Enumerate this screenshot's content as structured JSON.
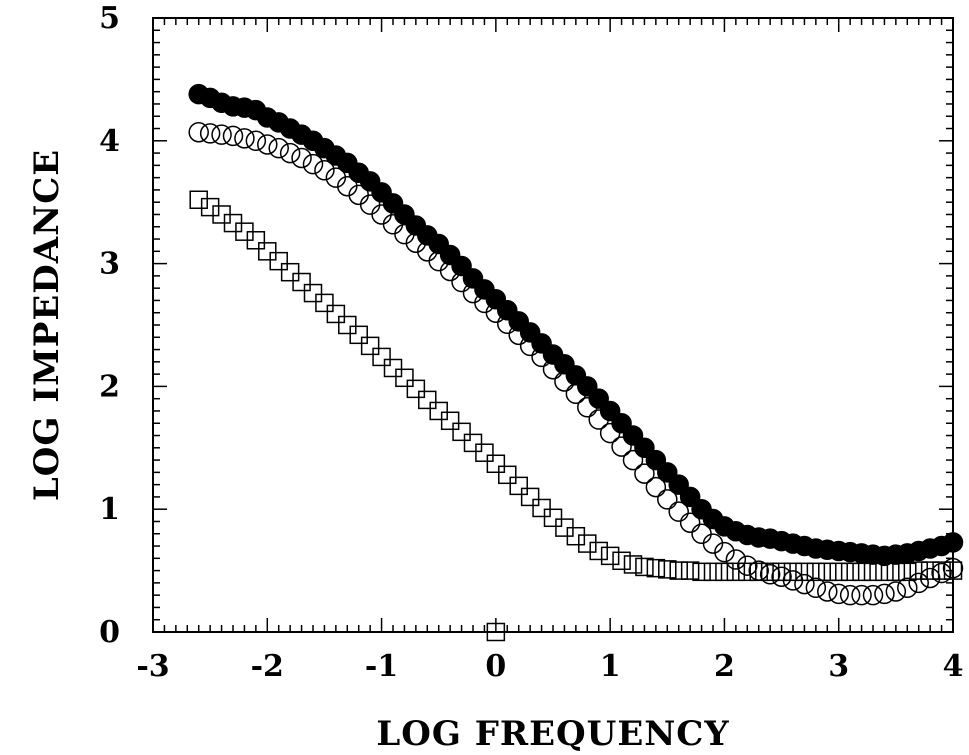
{
  "chart_data": {
    "type": "scatter",
    "xlabel": "LOG FREQUENCY",
    "ylabel": "LOG IMPEDANCE",
    "xlim": [
      -3,
      4
    ],
    "ylim": [
      0,
      5
    ],
    "x_ticks": [
      -3,
      -2,
      -1,
      0,
      1,
      2,
      3,
      4
    ],
    "y_ticks": [
      0,
      1,
      2,
      3,
      4,
      5
    ],
    "x_tick_labels": [
      "-3",
      "-2",
      "-1",
      "0",
      "1",
      "2",
      "3",
      "4"
    ],
    "y_tick_labels": [
      "0",
      "1",
      "2",
      "3",
      "4",
      "5"
    ],
    "grid": false,
    "series": [
      {
        "marker": "filled-circle",
        "x": [
          -2.6,
          -2.5,
          -2.4,
          -2.3,
          -2.2,
          -2.1,
          -2.0,
          -1.9,
          -1.8,
          -1.7,
          -1.6,
          -1.5,
          -1.4,
          -1.3,
          -1.2,
          -1.1,
          -1.0,
          -0.9,
          -0.8,
          -0.7,
          -0.6,
          -0.5,
          -0.4,
          -0.3,
          -0.2,
          -0.1,
          0.0,
          0.1,
          0.2,
          0.3,
          0.4,
          0.5,
          0.6,
          0.7,
          0.8,
          0.9,
          1.0,
          1.1,
          1.2,
          1.3,
          1.4,
          1.5,
          1.6,
          1.7,
          1.8,
          1.9,
          2.0,
          2.1,
          2.2,
          2.3,
          2.4,
          2.5,
          2.6,
          2.7,
          2.8,
          2.9,
          3.0,
          3.1,
          3.2,
          3.3,
          3.4,
          3.5,
          3.6,
          3.7,
          3.8,
          3.9,
          4.0
        ],
        "y": [
          4.38,
          4.35,
          4.31,
          4.28,
          4.27,
          4.25,
          4.19,
          4.15,
          4.1,
          4.05,
          4.0,
          3.94,
          3.88,
          3.82,
          3.74,
          3.67,
          3.58,
          3.49,
          3.4,
          3.31,
          3.23,
          3.16,
          3.07,
          2.98,
          2.88,
          2.79,
          2.71,
          2.62,
          2.53,
          2.44,
          2.35,
          2.26,
          2.18,
          2.09,
          2.0,
          1.9,
          1.8,
          1.7,
          1.6,
          1.5,
          1.4,
          1.3,
          1.2,
          1.1,
          1.0,
          0.92,
          0.86,
          0.82,
          0.79,
          0.77,
          0.76,
          0.74,
          0.72,
          0.7,
          0.68,
          0.67,
          0.66,
          0.65,
          0.64,
          0.63,
          0.62,
          0.63,
          0.64,
          0.66,
          0.68,
          0.7,
          0.73
        ]
      },
      {
        "marker": "open-circle",
        "x": [
          -2.6,
          -2.5,
          -2.4,
          -2.3,
          -2.2,
          -2.1,
          -2.0,
          -1.9,
          -1.8,
          -1.7,
          -1.6,
          -1.5,
          -1.4,
          -1.3,
          -1.2,
          -1.1,
          -1.0,
          -0.9,
          -0.8,
          -0.7,
          -0.6,
          -0.5,
          -0.4,
          -0.3,
          -0.2,
          -0.1,
          0.0,
          0.1,
          0.2,
          0.3,
          0.4,
          0.5,
          0.6,
          0.7,
          0.8,
          0.9,
          1.0,
          1.1,
          1.2,
          1.3,
          1.4,
          1.5,
          1.6,
          1.7,
          1.8,
          1.9,
          2.0,
          2.1,
          2.2,
          2.3,
          2.4,
          2.5,
          2.6,
          2.7,
          2.8,
          2.9,
          3.0,
          3.1,
          3.2,
          3.3,
          3.4,
          3.5,
          3.6,
          3.7,
          3.8,
          3.9,
          4.0
        ],
        "y": [
          4.07,
          4.06,
          4.05,
          4.04,
          4.02,
          4.0,
          3.97,
          3.94,
          3.9,
          3.86,
          3.81,
          3.76,
          3.7,
          3.63,
          3.56,
          3.48,
          3.4,
          3.32,
          3.24,
          3.17,
          3.1,
          3.02,
          2.94,
          2.85,
          2.76,
          2.68,
          2.6,
          2.51,
          2.42,
          2.33,
          2.24,
          2.14,
          2.04,
          1.94,
          1.83,
          1.73,
          1.62,
          1.51,
          1.4,
          1.29,
          1.18,
          1.08,
          0.98,
          0.89,
          0.8,
          0.72,
          0.65,
          0.59,
          0.54,
          0.5,
          0.47,
          0.45,
          0.42,
          0.39,
          0.36,
          0.33,
          0.31,
          0.3,
          0.3,
          0.3,
          0.31,
          0.33,
          0.36,
          0.4,
          0.44,
          0.48,
          0.52
        ]
      },
      {
        "marker": "open-square",
        "x": [
          -2.6,
          -2.5,
          -2.4,
          -2.3,
          -2.2,
          -2.1,
          -2.0,
          -1.9,
          -1.8,
          -1.7,
          -1.6,
          -1.5,
          -1.4,
          -1.3,
          -1.2,
          -1.1,
          -1.0,
          -0.9,
          -0.8,
          -0.7,
          -0.6,
          -0.5,
          -0.4,
          -0.3,
          -0.2,
          -0.1,
          0.0,
          0.1,
          0.2,
          0.3,
          0.4,
          0.5,
          0.6,
          0.7,
          0.8,
          0.9,
          1.0,
          1.1,
          1.2,
          1.3,
          1.4,
          1.5,
          1.6,
          1.7,
          1.8,
          1.9,
          2.0,
          2.1,
          2.2,
          2.3,
          2.4,
          2.5,
          2.6,
          2.7,
          2.8,
          2.9,
          3.0,
          3.1,
          3.2,
          3.3,
          3.4,
          3.5,
          3.6,
          3.7,
          3.8,
          3.9,
          4.0,
          0.0
        ],
        "y": [
          3.52,
          3.46,
          3.4,
          3.33,
          3.26,
          3.19,
          3.1,
          3.02,
          2.93,
          2.85,
          2.76,
          2.68,
          2.59,
          2.5,
          2.42,
          2.33,
          2.24,
          2.15,
          2.07,
          1.98,
          1.89,
          1.8,
          1.72,
          1.63,
          1.54,
          1.46,
          1.37,
          1.28,
          1.19,
          1.1,
          1.01,
          0.93,
          0.85,
          0.78,
          0.72,
          0.66,
          0.62,
          0.58,
          0.55,
          0.53,
          0.52,
          0.51,
          0.5,
          0.5,
          0.49,
          0.49,
          0.49,
          0.49,
          0.49,
          0.49,
          0.49,
          0.49,
          0.49,
          0.49,
          0.49,
          0.49,
          0.49,
          0.49,
          0.49,
          0.49,
          0.49,
          0.49,
          0.49,
          0.5,
          0.5,
          0.5,
          0.5,
          0.0
        ]
      }
    ]
  }
}
